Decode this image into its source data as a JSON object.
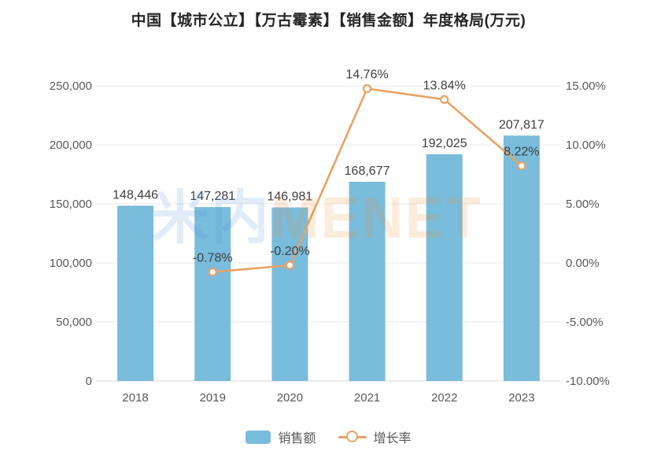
{
  "title": "中国【城市公立】【万古霉素】【销售金额】年度格局(万元)",
  "watermark": {
    "cn": "米内",
    "en": "MENET"
  },
  "colors": {
    "bar": "#7abcdc",
    "line": "#e9a265",
    "grid": "#e9e9e9",
    "axis_line": "#d9d9d9",
    "axis_text": "#595959",
    "data_label_text": "#3f3f3f",
    "title_text": "#262626",
    "watermark_cn": "#4a90d9",
    "watermark_en": "#f08c2e",
    "marker_fill": "#ffffff"
  },
  "chart_data": {
    "type": "bar",
    "combo": "bar+line",
    "title": "中国【城市公立】【万古霉素】【销售金额】年度格局(万元)",
    "categories": [
      "2018",
      "2019",
      "2020",
      "2021",
      "2022",
      "2023"
    ],
    "series": [
      {
        "name": "销售额",
        "type": "bar",
        "axis": "left",
        "values": [
          148446,
          147281,
          146981,
          168677,
          192025,
          207817
        ],
        "labels": [
          "148,446",
          "147,281",
          "146,981",
          "168,677",
          "192,025",
          "207,817"
        ]
      },
      {
        "name": "增长率",
        "type": "line",
        "axis": "right",
        "values": [
          null,
          -0.78,
          -0.2,
          14.76,
          13.84,
          8.22
        ],
        "labels": [
          null,
          "-0.78%",
          "-0.20%",
          "14.76%",
          "13.84%",
          "8.22%"
        ]
      }
    ],
    "left_axis": {
      "min": 0,
      "max": 250000,
      "ticks": [
        0,
        50000,
        100000,
        150000,
        200000,
        250000
      ],
      "tick_labels": [
        "0",
        "50,000",
        "100,000",
        "150,000",
        "200,000",
        "250,000"
      ]
    },
    "right_axis": {
      "min": -10,
      "max": 15,
      "ticks": [
        -10,
        -5,
        0,
        5,
        10,
        15
      ],
      "tick_labels": [
        "-10.00%",
        "-5.00%",
        "0.00%",
        "5.00%",
        "10.00%",
        "15.00%"
      ]
    },
    "grid": true,
    "legend_position": "bottom"
  }
}
